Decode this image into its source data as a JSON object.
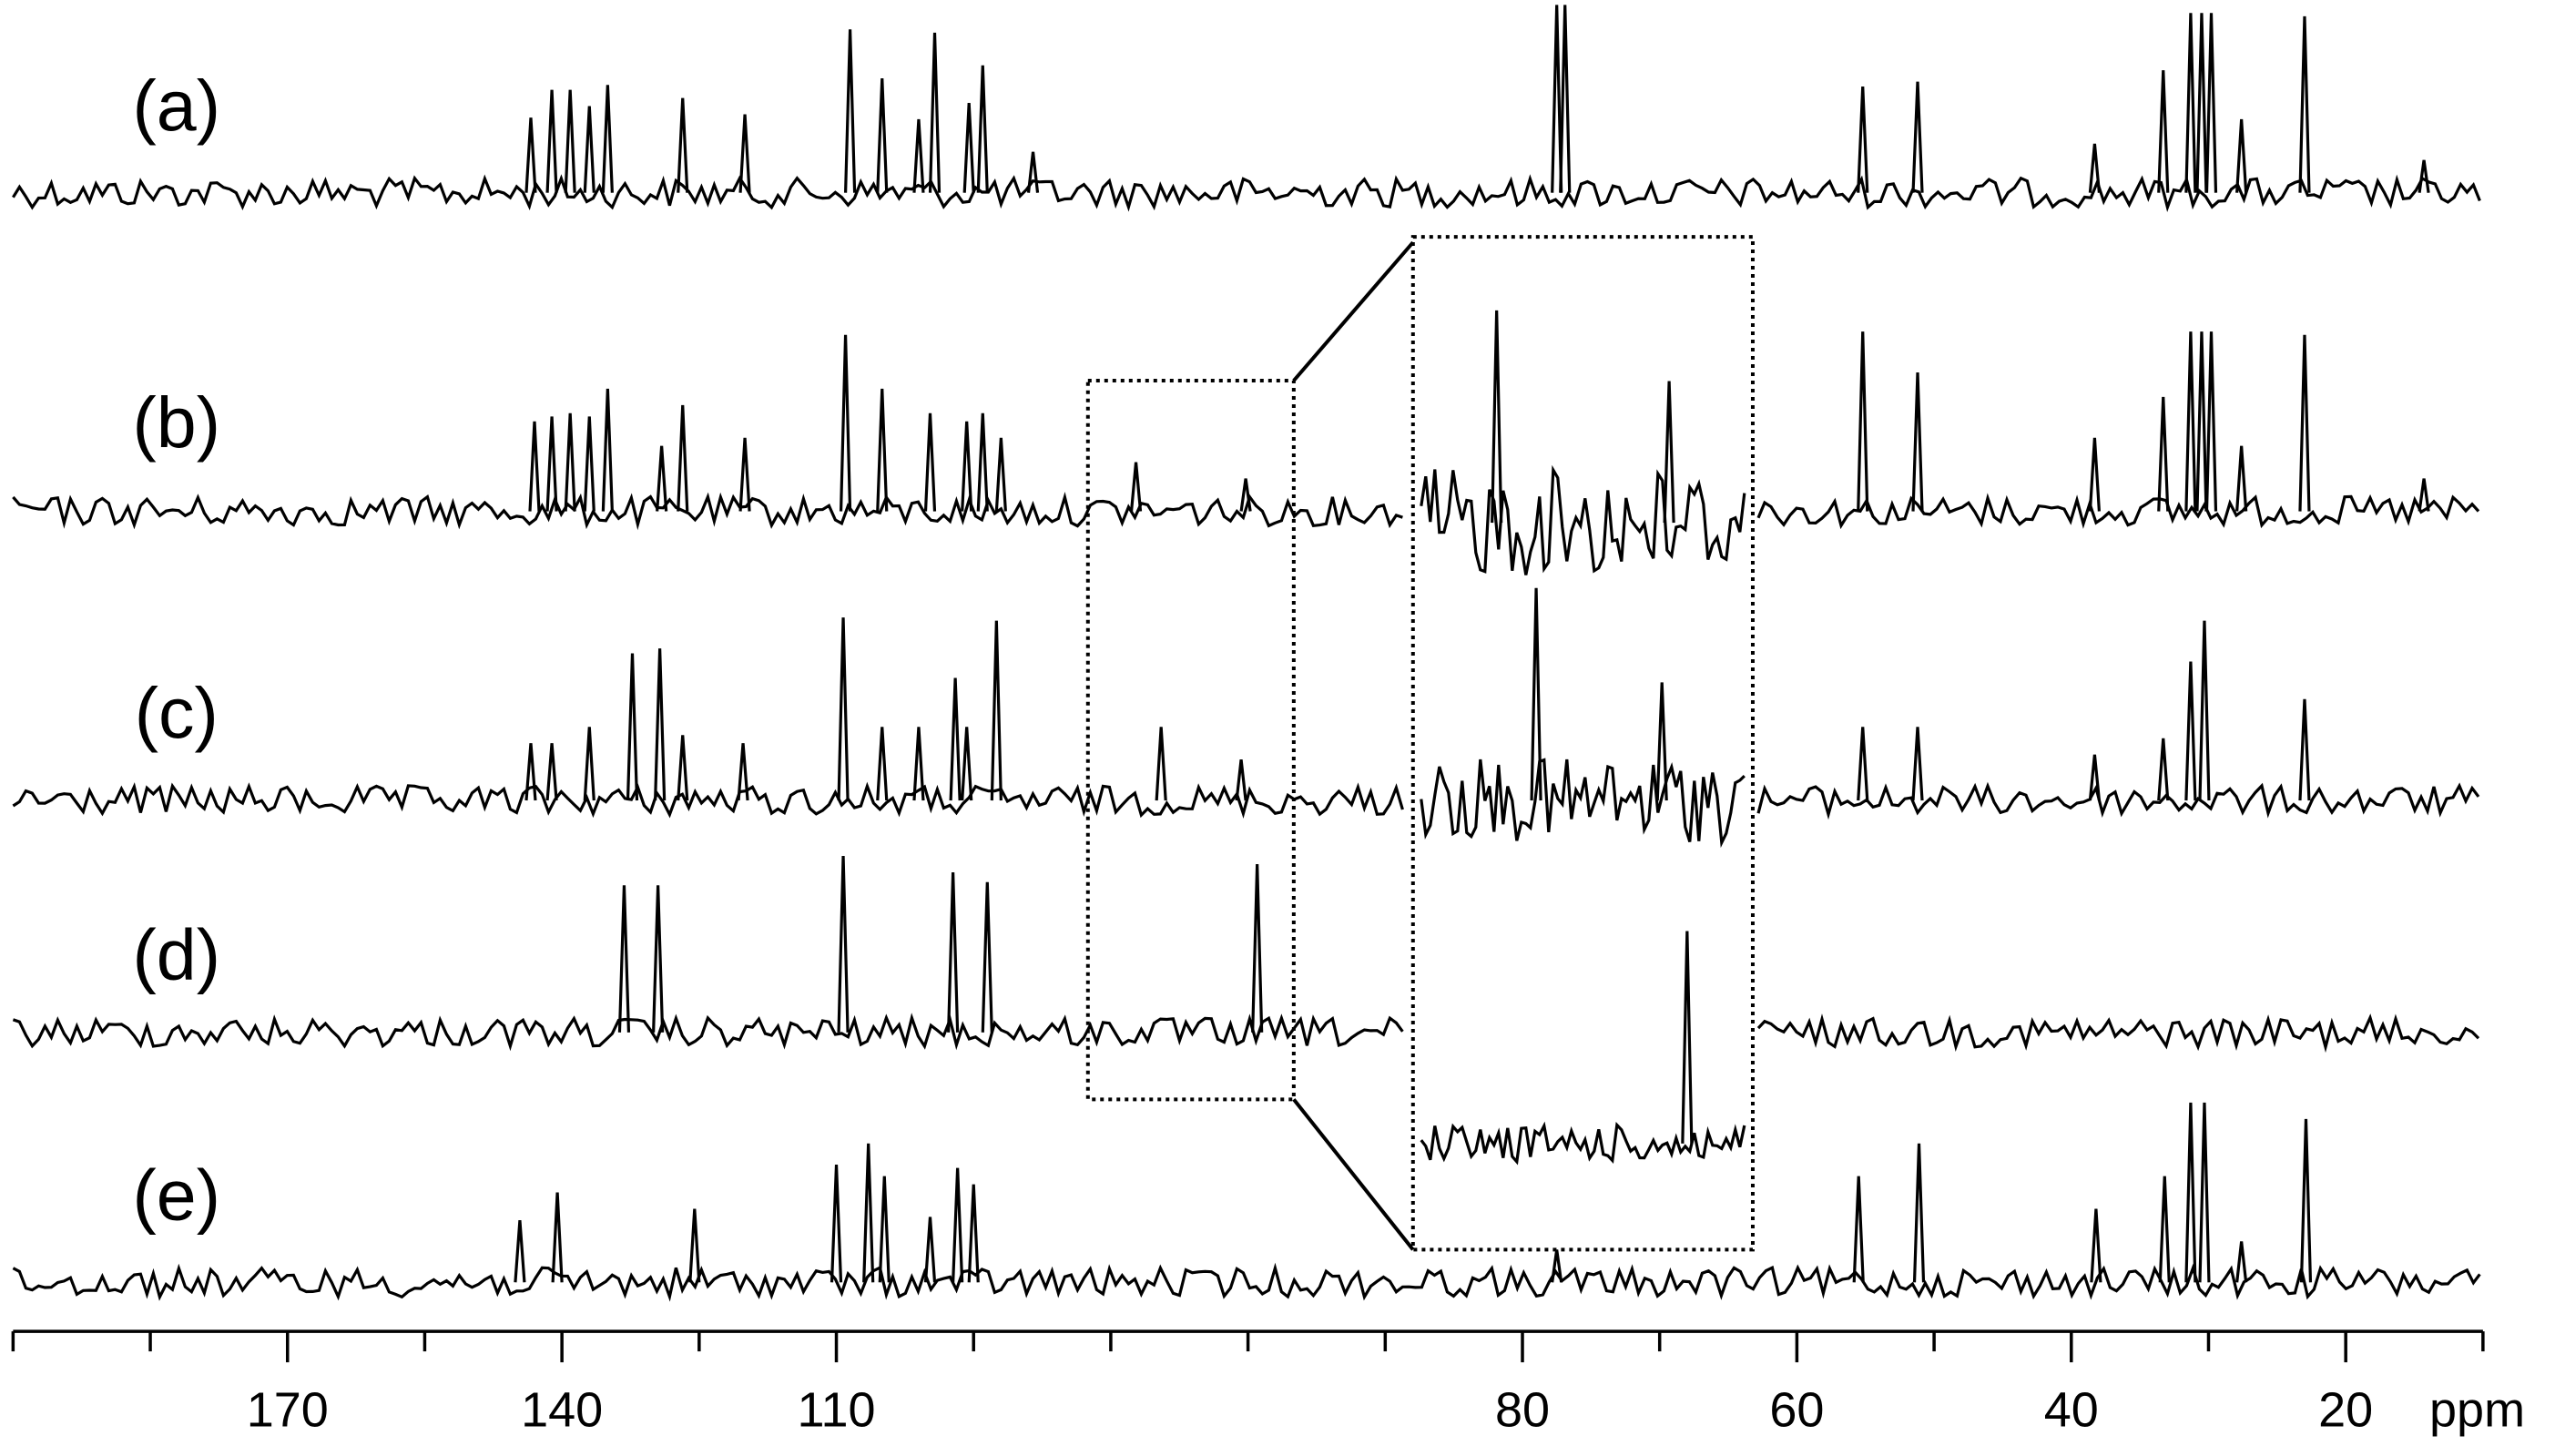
{
  "chart_data": {
    "type": "spectrum",
    "xlabel": "ppm",
    "color": "#000000",
    "xlim": [
      200,
      10
    ],
    "xticks": [
      170,
      140,
      110,
      80,
      60,
      40,
      20
    ],
    "minor_xticks": [
      200,
      185,
      155,
      125,
      104,
      98,
      92,
      86,
      70,
      50,
      30,
      10
    ],
    "inset_xlim": [
      99,
      90
    ],
    "series": [
      {
        "name": "(a)",
        "x": [
          143.4,
          141.1,
          139.1,
          137.0,
          135.0,
          126.8,
          120.0,
          109.4,
          108.0,
          106.4,
          105.7,
          104.2,
          103.6,
          101.4,
          77.5,
          76.9,
          55.2,
          51.2,
          38.3,
          33.3,
          31.3,
          30.5,
          29.8,
          27.6,
          23.0,
          14.3
        ],
        "values": [
          46,
          63,
          63,
          53,
          66,
          58,
          48,
          100,
          70,
          45,
          98,
          55,
          78,
          25,
          115,
          115,
          65,
          68,
          30,
          75,
          110,
          110,
          110,
          45,
          108,
          20
        ]
      },
      {
        "name": "(b)",
        "x": [
          143.0,
          141.1,
          139.1,
          137.0,
          135.0,
          129.1,
          126.8,
          120.0,
          109.6,
          108.0,
          105.9,
          104.3,
          103.6,
          102.8,
          96.9,
          92.1,
          55.2,
          51.2,
          38.3,
          33.3,
          31.3,
          30.5,
          29.8,
          27.6,
          23.0,
          14.3
        ],
        "values": [
          55,
          58,
          60,
          58,
          75,
          40,
          65,
          45,
          108,
          75,
          60,
          55,
          60,
          45,
          30,
          20,
          110,
          85,
          45,
          70,
          110,
          110,
          110,
          40,
          108,
          20
        ]
      },
      {
        "name": "(c)",
        "x": [
          143.4,
          141.1,
          137.0,
          132.3,
          129.3,
          126.8,
          120.2,
          109.7,
          108.0,
          106.4,
          104.8,
          104.3,
          103.0,
          95.8,
          92.3,
          55.2,
          51.2,
          38.3,
          33.3,
          31.3,
          30.3,
          23.0
        ],
        "values": [
          35,
          35,
          45,
          90,
          93,
          40,
          35,
          112,
          45,
          45,
          75,
          45,
          110,
          45,
          25,
          45,
          45,
          28,
          38,
          85,
          110,
          62
        ]
      },
      {
        "name": "(d)",
        "x": [
          133.2,
          129.5,
          109.7,
          104.9,
          103.4,
          91.6
        ],
        "values": [
          90,
          90,
          108,
          98,
          92,
          103
        ]
      },
      {
        "name": "(e)",
        "x": [
          144.6,
          140.5,
          125.5,
          110.0,
          108.6,
          107.9,
          105.9,
          104.7,
          104.0,
          77.5,
          55.5,
          51.1,
          38.2,
          33.2,
          31.3,
          30.3,
          27.6,
          22.9
        ],
        "values": [
          38,
          55,
          45,
          72,
          85,
          65,
          40,
          70,
          60,
          20,
          65,
          85,
          45,
          65,
          110,
          110,
          25,
          100
        ]
      }
    ]
  }
}
